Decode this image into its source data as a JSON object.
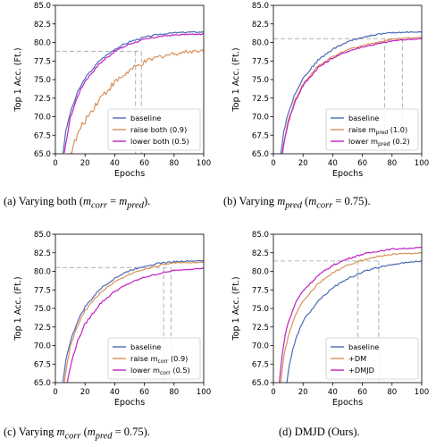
{
  "colors": {
    "blue": "#4c6bb5",
    "orange": "#d9915a",
    "magenta": "#c020c0",
    "ref": "#b8b8b8"
  },
  "chart_data": [
    {
      "type": "line",
      "caption": "(a) Varying both (m_corr = m_pred).",
      "xlabel": "Epochs",
      "ylabel": "Top 1 Acc. (Ft.)",
      "xlim": [
        0,
        100
      ],
      "ylim": [
        65,
        85
      ],
      "xticks": [
        "0",
        "20",
        "40",
        "60",
        "80",
        "100"
      ],
      "yticks": [
        "65.0",
        "67.5",
        "70.0",
        "72.5",
        "75.0",
        "77.5",
        "80.0",
        "82.5",
        "85.0"
      ],
      "grid": false,
      "legend_position": "lower-right",
      "reference": {
        "y": 78.8,
        "x": [
          54,
          58
        ]
      },
      "series": [
        {
          "name": "baseline",
          "legend": [
            "baseline"
          ],
          "color": "blue",
          "x": [
            5,
            7,
            10,
            15,
            20,
            30,
            40,
            50,
            60,
            70,
            80,
            90,
            100
          ],
          "y": [
            65.0,
            68.0,
            70.5,
            73.3,
            75.2,
            77.6,
            79.1,
            80.1,
            80.7,
            81.1,
            81.3,
            81.4,
            81.4
          ]
        },
        {
          "name": "raise both (0.9)",
          "legend": [
            "raise  both (0.9)"
          ],
          "color": "orange",
          "x": [
            10,
            13,
            16,
            20,
            25,
            30,
            40,
            50,
            60,
            70,
            80,
            90,
            100
          ],
          "y": [
            65.0,
            66.5,
            68.0,
            69.5,
            71.0,
            72.5,
            74.6,
            76.2,
            77.3,
            78.1,
            78.5,
            78.8,
            78.9
          ]
        },
        {
          "name": "lower both (0.5)",
          "legend": [
            "lower both (0.5)"
          ],
          "color": "magenta",
          "x": [
            6,
            8,
            10,
            15,
            20,
            30,
            40,
            50,
            60,
            70,
            80,
            90,
            100
          ],
          "y": [
            65.0,
            67.5,
            69.8,
            72.8,
            74.8,
            77.2,
            78.8,
            79.8,
            80.4,
            80.8,
            81.0,
            81.1,
            81.1
          ]
        }
      ]
    },
    {
      "type": "line",
      "caption": "(b) Varying m_pred (m_corr = 0.75).",
      "xlabel": "Epochs",
      "ylabel": "Top 1 Acc. (Ft.)",
      "xlim": [
        0,
        100
      ],
      "ylim": [
        65,
        85
      ],
      "xticks": [
        "0",
        "20",
        "40",
        "60",
        "80",
        "100"
      ],
      "yticks": [
        "65.0",
        "67.5",
        "70.0",
        "72.5",
        "75.0",
        "77.5",
        "80.0",
        "82.5",
        "85.0"
      ],
      "grid": false,
      "legend_position": "lower-right",
      "reference": {
        "y": 80.5,
        "x": [
          75,
          87
        ]
      },
      "series": [
        {
          "name": "baseline",
          "legend": [
            "baseline"
          ],
          "color": "blue",
          "x": [
            5,
            7,
            10,
            15,
            20,
            30,
            40,
            50,
            60,
            70,
            80,
            90,
            100
          ],
          "y": [
            65.0,
            68.0,
            70.5,
            73.3,
            75.2,
            77.6,
            79.1,
            80.1,
            80.7,
            81.1,
            81.3,
            81.4,
            81.4
          ]
        },
        {
          "name": "raise m_pred (1.0)",
          "legend": [
            "raise  m",
            "pred",
            " (1.0)"
          ],
          "color": "orange",
          "x": [
            6,
            8,
            10,
            15,
            20,
            30,
            40,
            50,
            60,
            70,
            80,
            90,
            100
          ],
          "y": [
            65.0,
            67.5,
            69.5,
            72.4,
            74.4,
            76.8,
            78.1,
            79.0,
            79.6,
            80.0,
            80.4,
            80.6,
            80.7
          ]
        },
        {
          "name": "lower m_pred (0.2)",
          "legend": [
            "lower m",
            "pred",
            " (0.2)"
          ],
          "color": "magenta",
          "x": [
            6,
            8,
            10,
            15,
            20,
            30,
            40,
            50,
            60,
            70,
            80,
            90,
            100
          ],
          "y": [
            65.0,
            67.3,
            69.3,
            72.2,
            74.2,
            76.6,
            77.9,
            78.8,
            79.4,
            79.8,
            80.2,
            80.4,
            80.5
          ]
        }
      ]
    },
    {
      "type": "line",
      "caption": "(c) Varying m_corr (m_pred = 0.75).",
      "xlabel": "Epochs",
      "ylabel": "Top 1 Acc. (Ft.)",
      "xlim": [
        0,
        100
      ],
      "ylim": [
        65,
        85
      ],
      "xticks": [
        "0",
        "20",
        "40",
        "60",
        "80",
        "100"
      ],
      "yticks": [
        "65.0",
        "67.5",
        "70.0",
        "72.5",
        "75.0",
        "77.5",
        "80.0",
        "82.5",
        "85.0"
      ],
      "grid": false,
      "legend_position": "lower-right",
      "reference": {
        "y": 80.5,
        "x": [
          73,
          78
        ]
      },
      "series": [
        {
          "name": "baseline",
          "legend": [
            "baseline"
          ],
          "color": "blue",
          "x": [
            5,
            7,
            10,
            15,
            20,
            30,
            40,
            50,
            60,
            70,
            80,
            90,
            100
          ],
          "y": [
            65.0,
            68.0,
            70.5,
            73.3,
            75.2,
            77.6,
            79.1,
            80.1,
            80.7,
            81.1,
            81.3,
            81.4,
            81.4
          ]
        },
        {
          "name": "raise m_corr (0.9)",
          "legend": [
            "raise  m",
            "corr",
            " (0.9)"
          ],
          "color": "orange",
          "x": [
            6,
            8,
            10,
            15,
            20,
            30,
            40,
            50,
            60,
            70,
            80,
            90,
            100
          ],
          "y": [
            65.0,
            67.6,
            69.8,
            72.7,
            74.7,
            77.1,
            78.6,
            79.6,
            80.3,
            80.8,
            81.1,
            81.2,
            81.2
          ]
        },
        {
          "name": "lower m_corr (0.5)",
          "legend": [
            "lower m",
            "corr",
            " (0.5)"
          ],
          "color": "magenta",
          "x": [
            8,
            10,
            12,
            15,
            20,
            30,
            40,
            50,
            60,
            70,
            80,
            90,
            100
          ],
          "y": [
            65.0,
            67.0,
            68.6,
            70.6,
            72.9,
            75.6,
            77.3,
            78.4,
            79.2,
            79.7,
            80.1,
            80.3,
            80.4
          ]
        }
      ]
    },
    {
      "type": "line",
      "caption": "(d) DMJD (Ours).",
      "xlabel": "Epochs",
      "ylabel": "Top 1 Acc. (Ft.)",
      "xlim": [
        0,
        100
      ],
      "ylim": [
        65,
        85
      ],
      "xticks": [
        "0",
        "20",
        "40",
        "60",
        "80",
        "100"
      ],
      "yticks": [
        "65.0",
        "67.5",
        "70.0",
        "72.5",
        "75.0",
        "77.5",
        "80.0",
        "82.5",
        "85.0"
      ],
      "grid": false,
      "legend_position": "lower-right",
      "reference": {
        "y": 81.4,
        "x": [
          57,
          71
        ]
      },
      "series": [
        {
          "name": "baseline",
          "legend": [
            "baseline"
          ],
          "color": "blue",
          "x": [
            9,
            11,
            13,
            15,
            20,
            30,
            40,
            50,
            60,
            70,
            80,
            90,
            100
          ],
          "y": [
            65.0,
            67.5,
            69.4,
            70.9,
            73.3,
            76.0,
            77.8,
            79.0,
            79.9,
            80.5,
            80.9,
            81.2,
            81.4
          ]
        },
        {
          "name": "+DM",
          "legend": [
            "+DM"
          ],
          "color": "orange",
          "x": [
            5,
            7,
            10,
            15,
            20,
            30,
            40,
            50,
            60,
            70,
            80,
            90,
            100
          ],
          "y": [
            65.0,
            68.5,
            71.2,
            74.2,
            76.0,
            78.3,
            79.8,
            80.8,
            81.5,
            82.0,
            82.3,
            82.4,
            82.5
          ]
        },
        {
          "name": "+DMJD",
          "legend": [
            "+DMJD"
          ],
          "color": "magenta",
          "x": [
            4,
            6,
            9,
            15,
            20,
            30,
            40,
            50,
            60,
            70,
            80,
            90,
            100
          ],
          "y": [
            65.0,
            69.0,
            72.5,
            75.8,
            77.4,
            79.4,
            80.8,
            81.7,
            82.3,
            82.7,
            83.0,
            83.1,
            83.2
          ]
        }
      ]
    }
  ]
}
